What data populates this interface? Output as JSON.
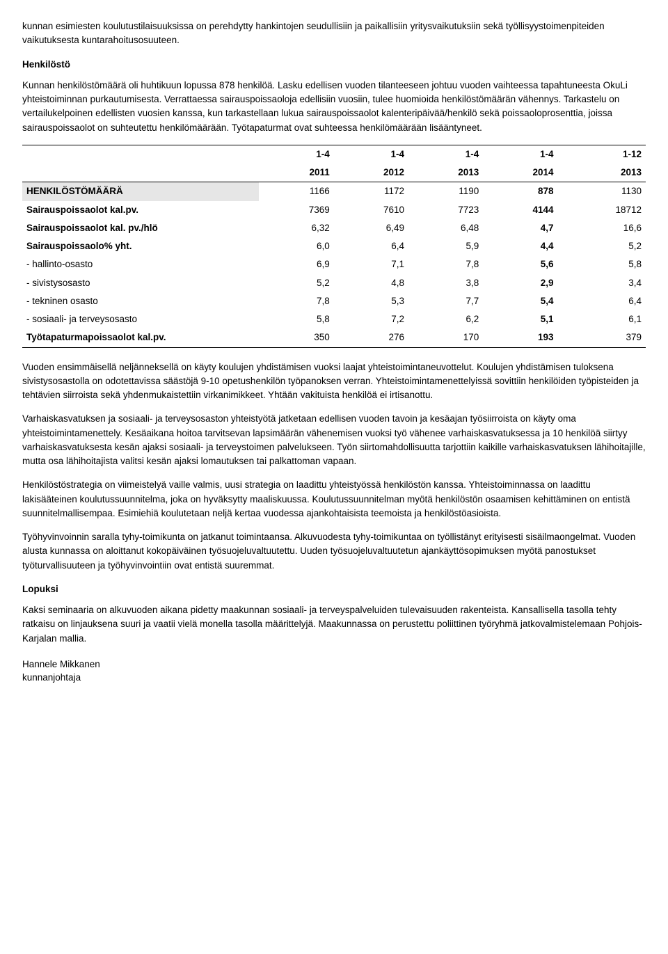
{
  "intro_paragraph": "kunnan esimiesten koulutustilaisuuksissa on perehdytty hankintojen seudullisiin ja paikallisiin yritysvaikutuksiin sekä työllisyystoimenpiteiden vaikutuksesta kuntarahoitusosuuteen.",
  "heading_henkilosto": "Henkilöstö",
  "henkilosto_paragraph": "Kunnan henkilöstömäärä oli huhtikuun lopussa 878 henkilöä. Lasku edellisen vuoden tilanteeseen johtuu vuoden vaihteessa tapahtuneesta OkuLi yhteistoiminnan purkautumisesta. Verrattaessa sairauspoissaoloja edellisiin vuosiin, tulee huomioida henkilöstömäärän vähennys. Tarkastelu on vertailukelpoinen edellisten vuosien kanssa, kun tarkastellaan lukua sairauspoissaolot kalenteripäivää/henkilö sekä poissaoloprosenttia, joissa sairauspoissaolot on suhteutettu henkilömäärään. Työtapaturmat ovat suhteessa henkilömäärään lisääntyneet.",
  "table": {
    "header_row1": [
      "",
      "1-4",
      "1-4",
      "1-4",
      "1-4",
      "1-12"
    ],
    "header_row2": [
      "",
      "2011",
      "2012",
      "2013",
      "2014",
      "2013"
    ],
    "rows": [
      {
        "label": "HENKILÖSTÖMÄÄRÄ",
        "c1": "1166",
        "c2": "1172",
        "c3": "1190",
        "c4": "878",
        "c5": "1130",
        "highlight": true,
        "bold": true
      },
      {
        "label": "Sairauspoissaolot kal.pv.",
        "c1": "7369",
        "c2": "7610",
        "c3": "7723",
        "c4": "4144",
        "c5": "18712",
        "bold": true
      },
      {
        "label": "Sairauspoissaolot kal. pv./hlö",
        "c1": "6,32",
        "c2": "6,49",
        "c3": "6,48",
        "c4": "4,7",
        "c5": "16,6",
        "bold": true
      },
      {
        "label": "Sairauspoissaolo% yht.",
        "c1": "6,0",
        "c2": "6,4",
        "c3": "5,9",
        "c4": "4,4",
        "c5": "5,2",
        "bold": true
      },
      {
        "label": " - hallinto-osasto",
        "c1": "6,9",
        "c2": "7,1",
        "c3": "7,8",
        "c4": "5,6",
        "c5": "5,8"
      },
      {
        "label": " - sivistysosasto",
        "c1": "5,2",
        "c2": "4,8",
        "c3": "3,8",
        "c4": "2,9",
        "c5": "3,4"
      },
      {
        "label": " - tekninen osasto",
        "c1": "7,8",
        "c2": "5,3",
        "c3": "7,7",
        "c4": "5,4",
        "c5": "6,4"
      },
      {
        "label": " - sosiaali- ja terveysosasto",
        "c1": "5,8",
        "c2": "7,2",
        "c3": "6,2",
        "c4": "5,1",
        "c5": "6,1"
      },
      {
        "label": "Työtapaturmapoissaolot kal.pv.",
        "c1": "350",
        "c2": "276",
        "c3": "170",
        "c4": "193",
        "c5": "379",
        "bold": true
      }
    ]
  },
  "p_vuoden": "Vuoden ensimmäisellä neljänneksellä on käyty koulujen yhdistämisen vuoksi laajat yhteistoimintaneuvottelut. Koulujen yhdistämisen tuloksena sivistysosastolla on odotettavissa säästöjä 9-10 opetushenkilön työpanoksen verran. Yhteistoimintamenettelyissä sovittiin henkilöiden työpisteiden ja tehtävien siirroista sekä yhdenmukaistettiin virkanimikkeet. Yhtään vakituista henkilöä ei irtisanottu.",
  "p_varhaiskasvatuksen": "Varhaiskasvatuksen ja sosiaali- ja terveysosaston yhteistyötä jatketaan edellisen vuoden tavoin ja kesäajan työsiirroista on käyty oma yhteistoimintamenettely. Kesäaikana hoitoa tarvitsevan lapsimäärän vähenemisen vuoksi työ vähenee varhaiskasvatuksessa ja 10 henkilöä siirtyy varhaiskasvatuksesta kesän ajaksi sosiaali- ja terveystoimen palvelukseen. Työn siirtomahdollisuutta tarjottiin kaikille varhaiskasvatuksen lähihoitajille, mutta osa lähihoitajista valitsi kesän ajaksi lomautuksen tai palkattoman vapaan.",
  "p_henkilostostrategia": "Henkilöstöstrategia on viimeistelyä vaille valmis, uusi strategia on laadittu yhteistyössä henkilöstön kanssa. Yhteistoiminnassa on laadittu lakisääteinen koulutussuunnitelma, joka on hyväksytty maaliskuussa. Koulutussuunnitelman myötä henkilöstön osaamisen kehittäminen on entistä suunnitelmallisempaa. Esimiehiä koulutetaan neljä kertaa vuodessa ajankohtaisista teemoista ja henkilöstöasioista.",
  "p_tyohyvinvoinnin": "Työhyvinvoinnin saralla tyhy-toimikunta on jatkanut toimintaansa. Alkuvuodesta tyhy-toimikuntaa on työllistänyt erityisesti sisäilmaongelmat. Vuoden alusta kunnassa on aloittanut kokopäiväinen työsuojeluvaltuutettu. Uuden työsuojeluvaltuutetun ajankäyttösopimuksen myötä panostukset työturvallisuuteen ja työhyvinvointiin ovat entistä suuremmat.",
  "heading_lopuksi": "Lopuksi",
  "p_lopuksi": "Kaksi seminaaria on alkuvuoden aikana pidetty maakunnan sosiaali- ja terveyspalveluiden tulevaisuuden rakenteista. Kansallisella tasolla tehty ratkaisu on linjauksena suuri ja vaatii vielä monella tasolla määrittelyjä. Maakunnassa on perustettu poliittinen työryhmä jatkovalmistelemaan Pohjois-Karjalan mallia.",
  "signature_name": "Hannele Mikkanen",
  "signature_title": "kunnanjohtaja"
}
